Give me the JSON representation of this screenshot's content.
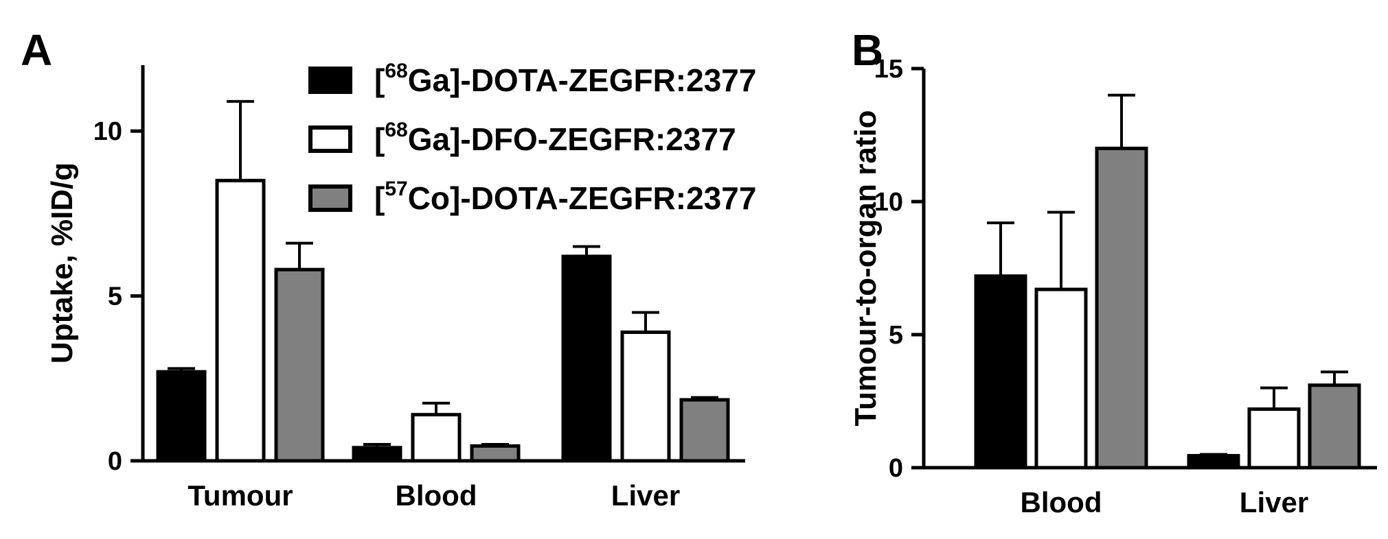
{
  "legend": [
    {
      "pre": "[",
      "sup": "68",
      "post": "Ga]-DOTA-ZEGFR:2377",
      "fill": "#000000"
    },
    {
      "pre": "[",
      "sup": "68",
      "post": "Ga]-DFO-ZEGFR:2377",
      "fill": "#ffffff"
    },
    {
      "pre": "[",
      "sup": "57",
      "post": "Co]-DOTA-ZEGFR:2377",
      "fill": "#808080"
    }
  ],
  "chart_data": [
    {
      "panel": "A",
      "type": "bar",
      "ylabel": "Uptake, %ID/g",
      "ylim": [
        0,
        12
      ],
      "yticks": [
        0,
        5,
        10
      ],
      "categories": [
        "Tumour",
        "Blood",
        "Liver"
      ],
      "series": [
        {
          "name": "[68Ga]-DOTA-ZEGFR:2377",
          "color": "#000000",
          "values": [
            2.7,
            0.4,
            6.2
          ],
          "errors": [
            0.1,
            0.1,
            0.3
          ]
        },
        {
          "name": "[68Ga]-DFO-ZEGFR:2377",
          "color": "#ffffff",
          "values": [
            8.5,
            1.4,
            3.9
          ],
          "errors": [
            2.4,
            0.35,
            0.6
          ]
        },
        {
          "name": "[57Co]-DOTA-ZEGFR:2377",
          "color": "#808080",
          "values": [
            5.8,
            0.45,
            1.85
          ],
          "errors": [
            0.8,
            0.05,
            0.07
          ]
        }
      ]
    },
    {
      "panel": "B",
      "type": "bar",
      "ylabel": "Tumour-to-organ ratio",
      "ylim": [
        0,
        15
      ],
      "yticks": [
        0,
        5,
        10,
        15
      ],
      "categories": [
        "Blood",
        "Liver"
      ],
      "series": [
        {
          "name": "[68Ga]-DOTA-ZEGFR:2377",
          "color": "#000000",
          "values": [
            7.2,
            0.45
          ],
          "errors": [
            2.0,
            0.05
          ]
        },
        {
          "name": "[68Ga]-DFO-ZEGFR:2377",
          "color": "#ffffff",
          "values": [
            6.7,
            2.2
          ],
          "errors": [
            2.9,
            0.8
          ]
        },
        {
          "name": "[57Co]-DOTA-ZEGFR:2377",
          "color": "#808080",
          "values": [
            12.0,
            3.1
          ],
          "errors": [
            2.0,
            0.5
          ]
        }
      ]
    }
  ]
}
